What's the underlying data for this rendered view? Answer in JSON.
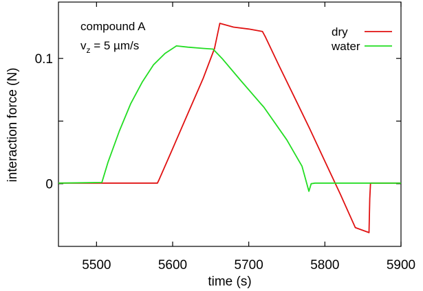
{
  "chart_data": {
    "type": "line",
    "xlabel": "time  (s)",
    "ylabel": "interaction force  (N)",
    "xlim": [
      5450,
      5900
    ],
    "ylim": [
      -0.05,
      0.145
    ],
    "xticks": [
      5500,
      5600,
      5700,
      5800,
      5900
    ],
    "xtick_labels": [
      "5500",
      "5600",
      "5700",
      "5800",
      "5900"
    ],
    "yticks": [
      0,
      0.1
    ],
    "ytick_labels": [
      "0",
      "0.1"
    ],
    "minor_yticks": [
      0.05
    ],
    "grid": false,
    "legend_position": "top-right",
    "annotations": {
      "compound": "compound A",
      "velocity_main": "v",
      "velocity_sub": "z",
      "velocity_rest": " = 5 µm/s"
    },
    "series": [
      {
        "name": "dry",
        "color": "#e01010",
        "x": [
          5450,
          5580,
          5582,
          5600,
          5620,
          5640,
          5655,
          5662,
          5680,
          5700,
          5718,
          5722,
          5740,
          5760,
          5780,
          5800,
          5820,
          5840,
          5858,
          5859,
          5860,
          5900
        ],
        "y": [
          0.0005,
          0.0005,
          0.003,
          0.028,
          0.056,
          0.084,
          0.108,
          0.128,
          0.125,
          0.1235,
          0.1215,
          0.117,
          0.094,
          0.069,
          0.044,
          0.018,
          -0.008,
          -0.035,
          -0.039,
          -0.012,
          0.0005,
          0.0005
        ]
      },
      {
        "name": "water",
        "color": "#22dd22",
        "x": [
          5450,
          5507,
          5515,
          5530,
          5545,
          5560,
          5575,
          5590,
          5605,
          5620,
          5640,
          5653,
          5665,
          5690,
          5720,
          5750,
          5770,
          5779,
          5782,
          5787,
          5900
        ],
        "y": [
          0.0005,
          0.001,
          0.017,
          0.042,
          0.064,
          0.081,
          0.095,
          0.104,
          0.11,
          0.109,
          0.108,
          0.1075,
          0.1,
          0.082,
          0.061,
          0.035,
          0.014,
          -0.006,
          0.0,
          0.0005,
          0.0005
        ]
      }
    ]
  }
}
